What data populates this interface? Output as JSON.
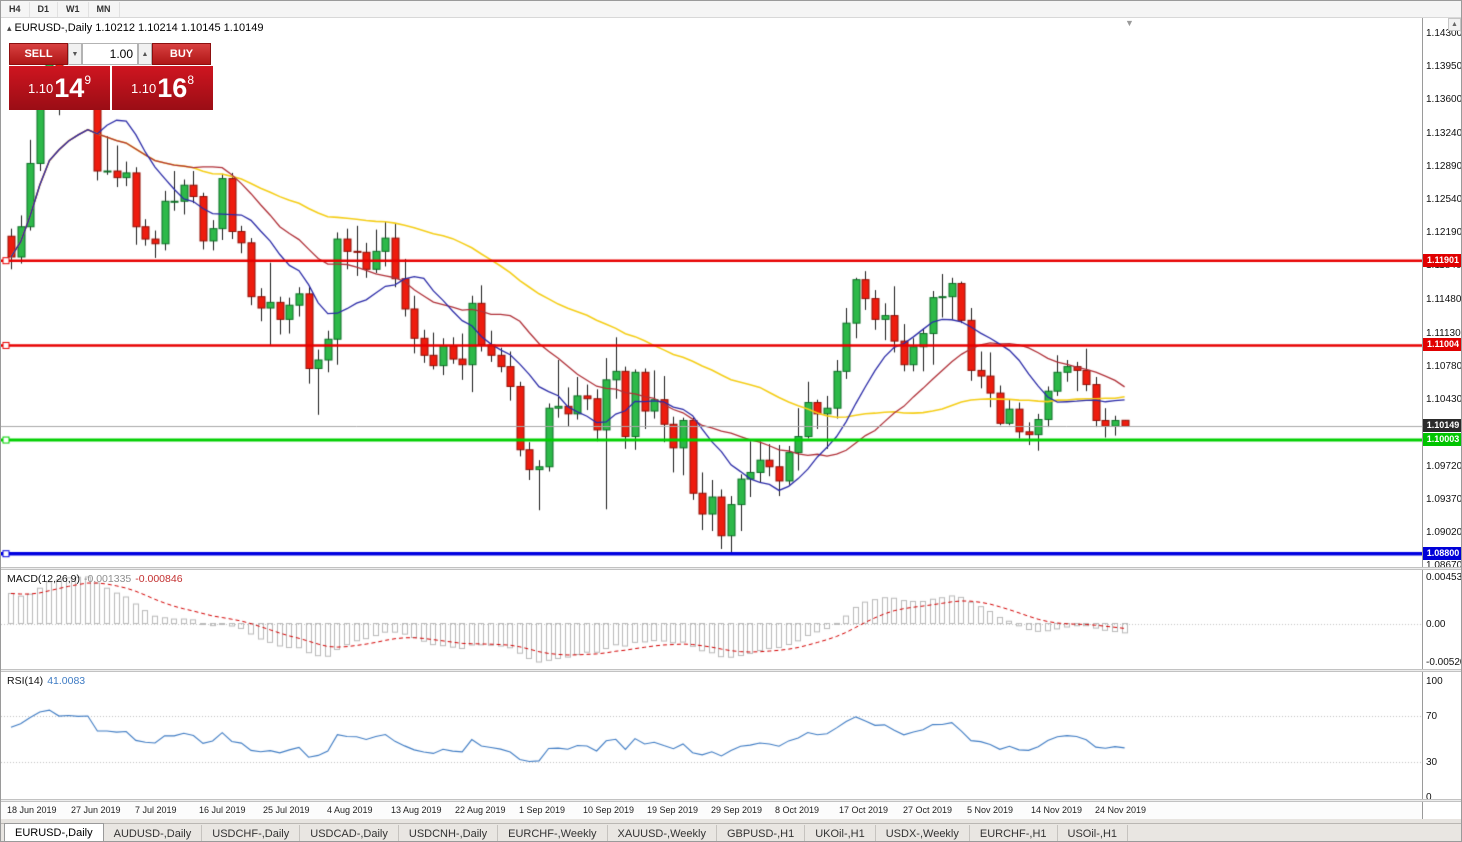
{
  "toolbar": {
    "timeframes": [
      "H4",
      "D1",
      "W1",
      "MN"
    ]
  },
  "icons": {
    "collapse": "▴",
    "spin_down": "▼",
    "spin_up": "▲",
    "scroll_up": "▲",
    "shift_marker": "▼"
  },
  "chart_header": {
    "symbol": "EURUSD-,Daily",
    "ohlc": "1.10212 1.10214 1.10145 1.10149"
  },
  "one_click": {
    "sell_label": "SELL",
    "buy_label": "BUY",
    "volume": "1.00",
    "sell_price": {
      "prefix": "1.10",
      "pips": "14",
      "pipette": "9"
    },
    "buy_price": {
      "prefix": "1.10",
      "pips": "16",
      "pipette": "8"
    }
  },
  "price_scale_labels": [
    "1.14300",
    "1.13950",
    "1.13600",
    "1.13240",
    "1.12890",
    "1.12540",
    "1.12190",
    "1.11840",
    "1.11480",
    "1.11130",
    "1.10780",
    "1.10430",
    "1.09720",
    "1.09370",
    "1.09020",
    "1.08670"
  ],
  "price_lines": [
    {
      "label": "1.11901",
      "price": 1.11901,
      "color": "#e80000",
      "box": "#e00000",
      "thickness": 2.5
    },
    {
      "label": "1.11004",
      "price": 1.11004,
      "color": "#e80000",
      "box": "#e00000",
      "thickness": 2.5
    },
    {
      "label": "1.10003",
      "price": 1.10003,
      "color": "#00d000",
      "box": "#00c400",
      "thickness": 3
    },
    {
      "label": "1.08800",
      "price": 1.088,
      "color": "#0000e0",
      "box": "#0000d8",
      "thickness": 3.5
    }
  ],
  "bid_line": {
    "label": "1.10149",
    "price": 1.10149,
    "line_color": "#a8a8a8",
    "box_color": "#2a2a2a"
  },
  "indicators": {
    "macd": {
      "title": "MACD(12,26,9)",
      "value_main": "-0.001335",
      "value_signal": "-0.000846",
      "scale": [
        "0.004536",
        "0.00",
        "-0.005205"
      ]
    },
    "rsi": {
      "title": "RSI(14)",
      "value": "41.0083",
      "scale": [
        "100",
        "70",
        "30",
        "0"
      ],
      "levels": [
        70,
        30
      ]
    }
  },
  "x_axis_labels": [
    "18 Jun 2019",
    "27 Jun 2019",
    "7 Jul 2019",
    "16 Jul 2019",
    "25 Jul 2019",
    "4 Aug 2019",
    "13 Aug 2019",
    "22 Aug 2019",
    "1 Sep 2019",
    "10 Sep 2019",
    "19 Sep 2019",
    "29 Sep 2019",
    "8 Oct 2019",
    "17 Oct 2019",
    "27 Oct 2019",
    "5 Nov 2019",
    "14 Nov 2019",
    "24 Nov 2019"
  ],
  "tabs": [
    {
      "label": "EURUSD-,Daily",
      "active": true
    },
    {
      "label": "AUDUSD-,Daily",
      "active": false
    },
    {
      "label": "USDCHF-,Daily",
      "active": false
    },
    {
      "label": "USDCAD-,Daily",
      "active": false
    },
    {
      "label": "USDCNH-,Daily",
      "active": false
    },
    {
      "label": "EURCHF-,Weekly",
      "active": false
    },
    {
      "label": "XAUUSD-,Weekly",
      "active": false
    },
    {
      "label": "GBPUSD-,H1",
      "active": false
    },
    {
      "label": "UKOil-,H1",
      "active": false
    },
    {
      "label": "USDX-,Weekly",
      "active": false
    },
    {
      "label": "EURCHF-,H1",
      "active": false
    },
    {
      "label": "USOil-,H1",
      "active": false
    }
  ],
  "chart_data": {
    "type": "candlestick",
    "symbol": "EURUSD",
    "timeframe": "Daily",
    "price_axis": {
      "top": 1.143,
      "bottom": 1.0867
    },
    "h_levels": [
      1.11901,
      1.11004,
      1.10003,
      1.088
    ],
    "bid": 1.10149,
    "indicators": {
      "overlays": [
        {
          "name": "ma-slow",
          "period": 45,
          "color": "#f5ce18",
          "width": 1.6
        },
        {
          "name": "ma-mid",
          "period": 20,
          "color": "#b03038",
          "width": 1.3
        },
        {
          "name": "ma-fast",
          "period": 10,
          "color": "#2b2ba8",
          "width": 1.3
        }
      ],
      "macd": {
        "fast": 12,
        "slow": 26,
        "signal": 9,
        "seed_fast": 1.124,
        "seed_slow": 1.1196
      },
      "rsi": {
        "period": 14,
        "seed_avg_gain": 0.0018,
        "seed_avg_loss": 0.0012
      }
    },
    "ohlc": [
      [
        1.1216,
        1.1224,
        1.1181,
        1.1194
      ],
      [
        1.1194,
        1.1238,
        1.1187,
        1.1226
      ],
      [
        1.1226,
        1.1318,
        1.1222,
        1.1293
      ],
      [
        1.1293,
        1.1378,
        1.1285,
        1.1368
      ],
      [
        1.1368,
        1.1406,
        1.1362,
        1.1399
      ],
      [
        1.1399,
        1.1412,
        1.1344,
        1.1365
      ],
      [
        1.1365,
        1.1391,
        1.1351,
        1.1373
      ],
      [
        1.1373,
        1.1383,
        1.1357,
        1.1368
      ],
      [
        1.1368,
        1.1392,
        1.1351,
        1.1373
      ],
      [
        1.1373,
        1.1376,
        1.1275,
        1.1285
      ],
      [
        1.1285,
        1.1322,
        1.1281,
        1.1285
      ],
      [
        1.1285,
        1.1312,
        1.1268,
        1.1278
      ],
      [
        1.1278,
        1.1295,
        1.1269,
        1.1283
      ],
      [
        1.1283,
        1.1289,
        1.1207,
        1.1226
      ],
      [
        1.1226,
        1.1234,
        1.1206,
        1.1213
      ],
      [
        1.1213,
        1.1222,
        1.1193,
        1.1208
      ],
      [
        1.1208,
        1.1264,
        1.1201,
        1.1253
      ],
      [
        1.1253,
        1.1285,
        1.1243,
        1.1253
      ],
      [
        1.1253,
        1.1276,
        1.1239,
        1.127
      ],
      [
        1.127,
        1.1285,
        1.1251,
        1.1258
      ],
      [
        1.1258,
        1.1262,
        1.1202,
        1.1211
      ],
      [
        1.1211,
        1.1233,
        1.1201,
        1.1224
      ],
      [
        1.1224,
        1.1282,
        1.1212,
        1.1277
      ],
      [
        1.1277,
        1.1283,
        1.1213,
        1.1221
      ],
      [
        1.1221,
        1.1227,
        1.1198,
        1.1209
      ],
      [
        1.1209,
        1.1214,
        1.1143,
        1.1152
      ],
      [
        1.1152,
        1.1161,
        1.1126,
        1.114
      ],
      [
        1.114,
        1.1188,
        1.1101,
        1.1146
      ],
      [
        1.1146,
        1.1152,
        1.1112,
        1.1128
      ],
      [
        1.1128,
        1.1151,
        1.1113,
        1.1143
      ],
      [
        1.1143,
        1.1162,
        1.1131,
        1.1155
      ],
      [
        1.1155,
        1.1162,
        1.106,
        1.1076
      ],
      [
        1.1076,
        1.1096,
        1.1027,
        1.1085
      ],
      [
        1.1085,
        1.1116,
        1.1072,
        1.1107
      ],
      [
        1.1107,
        1.122,
        1.108,
        1.1213
      ],
      [
        1.1213,
        1.1224,
        1.1181,
        1.12
      ],
      [
        1.12,
        1.1227,
        1.1174,
        1.1199
      ],
      [
        1.1199,
        1.1209,
        1.1172,
        1.1181
      ],
      [
        1.1181,
        1.1223,
        1.1177,
        1.12
      ],
      [
        1.12,
        1.1232,
        1.1184,
        1.1214
      ],
      [
        1.1214,
        1.123,
        1.1162,
        1.1171
      ],
      [
        1.1171,
        1.1192,
        1.1131,
        1.1139
      ],
      [
        1.1139,
        1.1153,
        1.1092,
        1.1108
      ],
      [
        1.1108,
        1.1117,
        1.1082,
        1.109
      ],
      [
        1.109,
        1.1114,
        1.1075,
        1.1079
      ],
      [
        1.1079,
        1.1108,
        1.1069,
        1.11
      ],
      [
        1.11,
        1.1109,
        1.1081,
        1.1086
      ],
      [
        1.1086,
        1.1113,
        1.1064,
        1.108
      ],
      [
        1.108,
        1.1153,
        1.1051,
        1.1145
      ],
      [
        1.1145,
        1.1164,
        1.1094,
        1.1101
      ],
      [
        1.1101,
        1.1116,
        1.1083,
        1.109
      ],
      [
        1.109,
        1.1098,
        1.1072,
        1.1078
      ],
      [
        1.1078,
        1.1094,
        1.1042,
        1.1057
      ],
      [
        1.1057,
        1.1062,
        1.0983,
        1.099
      ],
      [
        1.099,
        1.0998,
        1.0958,
        1.0969
      ],
      [
        1.0969,
        1.0979,
        1.0926,
        1.0972
      ],
      [
        1.0972,
        1.1039,
        1.0967,
        1.1034
      ],
      [
        1.1034,
        1.1085,
        1.1024,
        1.1036
      ],
      [
        1.1036,
        1.1056,
        1.1015,
        1.1028
      ],
      [
        1.1028,
        1.1067,
        1.1022,
        1.1047
      ],
      [
        1.1047,
        1.1059,
        1.1032,
        1.1044
      ],
      [
        1.1044,
        1.1054,
        1.0999,
        1.1011
      ],
      [
        1.1011,
        1.1087,
        1.0927,
        1.1064
      ],
      [
        1.1064,
        1.1109,
        1.1044,
        1.1073
      ],
      [
        1.1073,
        1.1078,
        1.0991,
        1.1004
      ],
      [
        1.1004,
        1.1075,
        1.099,
        1.1072
      ],
      [
        1.1072,
        1.1076,
        1.1012,
        1.1031
      ],
      [
        1.1031,
        1.1074,
        1.1023,
        1.1043
      ],
      [
        1.1043,
        1.1068,
        1.0998,
        1.1017
      ],
      [
        1.1017,
        1.1025,
        1.0966,
        1.0992
      ],
      [
        1.0992,
        1.1024,
        1.0963,
        1.1021
      ],
      [
        1.1021,
        1.1024,
        1.0937,
        1.0944
      ],
      [
        1.0944,
        1.0966,
        1.0905,
        1.0922
      ],
      [
        1.0922,
        1.0958,
        1.0904,
        1.094
      ],
      [
        1.094,
        1.0948,
        1.0885,
        1.0899
      ],
      [
        1.0899,
        1.0941,
        1.0879,
        1.0932
      ],
      [
        1.0932,
        1.0964,
        1.0904,
        1.0959
      ],
      [
        1.0959,
        1.0999,
        1.094,
        1.0966
      ],
      [
        1.0966,
        1.0999,
        1.0955,
        1.0979
      ],
      [
        1.0979,
        1.0996,
        1.0962,
        1.0972
      ],
      [
        1.0972,
        1.0995,
        1.0941,
        1.0957
      ],
      [
        1.0957,
        1.0994,
        1.0953,
        1.0987
      ],
      [
        1.0987,
        1.1034,
        1.0968,
        1.1004
      ],
      [
        1.1004,
        1.1062,
        1.1002,
        1.104
      ],
      [
        1.104,
        1.1043,
        1.1012,
        1.1028
      ],
      [
        1.1028,
        1.1047,
        1.0991,
        1.1034
      ],
      [
        1.1034,
        1.1085,
        1.1023,
        1.1073
      ],
      [
        1.1073,
        1.114,
        1.1065,
        1.1124
      ],
      [
        1.1124,
        1.1172,
        1.1108,
        1.117
      ],
      [
        1.117,
        1.1179,
        1.1138,
        1.115
      ],
      [
        1.115,
        1.1159,
        1.1117,
        1.1128
      ],
      [
        1.1128,
        1.1145,
        1.1106,
        1.1132
      ],
      [
        1.1132,
        1.1163,
        1.1093,
        1.1105
      ],
      [
        1.1105,
        1.1123,
        1.1073,
        1.108
      ],
      [
        1.108,
        1.1108,
        1.1073,
        1.1099
      ],
      [
        1.1099,
        1.1118,
        1.1073,
        1.1113
      ],
      [
        1.1113,
        1.1158,
        1.108,
        1.1151
      ],
      [
        1.1151,
        1.1176,
        1.113,
        1.1152
      ],
      [
        1.1152,
        1.1172,
        1.1128,
        1.1166
      ],
      [
        1.1166,
        1.1168,
        1.1124,
        1.1127
      ],
      [
        1.1127,
        1.114,
        1.1063,
        1.1074
      ],
      [
        1.1074,
        1.1094,
        1.1055,
        1.1068
      ],
      [
        1.1068,
        1.1093,
        1.1035,
        1.105
      ],
      [
        1.105,
        1.1058,
        1.1016,
        1.1018
      ],
      [
        1.1018,
        1.1043,
        1.1016,
        1.1033
      ],
      [
        1.1033,
        1.104,
        1.1002,
        1.1009
      ],
      [
        1.1009,
        1.1019,
        1.0995,
        1.1006
      ],
      [
        1.1006,
        1.1028,
        1.0989,
        1.1022
      ],
      [
        1.1022,
        1.1057,
        1.1014,
        1.1052
      ],
      [
        1.1052,
        1.109,
        1.1047,
        1.1072
      ],
      [
        1.1072,
        1.1085,
        1.1062,
        1.1078
      ],
      [
        1.1078,
        1.1083,
        1.1052,
        1.1074
      ],
      [
        1.1074,
        1.1097,
        1.1052,
        1.1059
      ],
      [
        1.1059,
        1.1067,
        1.1014,
        1.1021
      ],
      [
        1.1021,
        1.1034,
        1.1003,
        1.1015
      ],
      [
        1.1015,
        1.1026,
        1.1005,
        1.1021
      ],
      [
        1.10212,
        1.10214,
        1.10145,
        1.10149
      ]
    ]
  }
}
